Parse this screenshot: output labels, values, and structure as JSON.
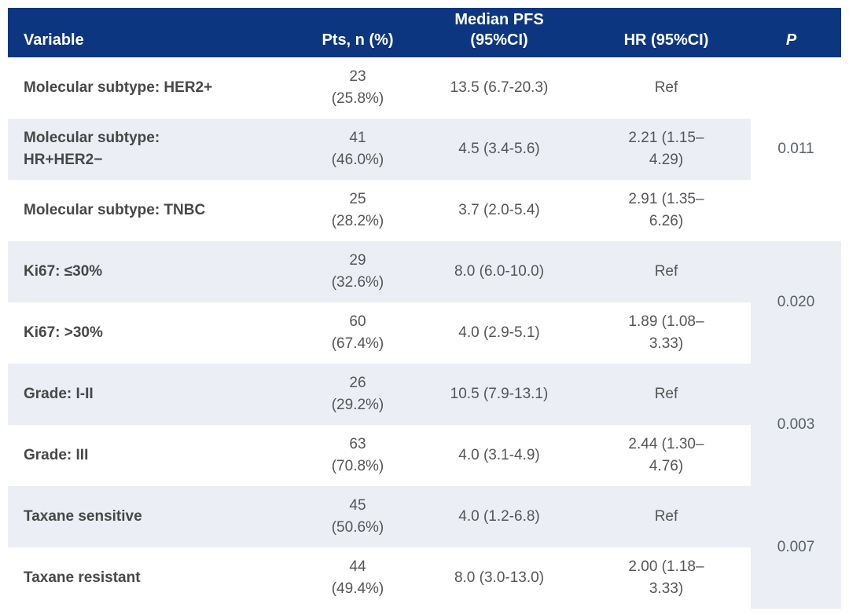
{
  "colors": {
    "header_bg": "#0d3680",
    "header_text": "#ffffff",
    "row_bg": "#ffffff",
    "row_alt_bg": "#ebeef4",
    "variable_text": "#474747",
    "data_text": "#555555"
  },
  "table": {
    "columns": {
      "variable": "Variable",
      "pts": "Pts, n (%)",
      "median_pfs": "Median PFS\n(95%CI)",
      "hr": "HR (95%CI)",
      "p": "P"
    },
    "rows": [
      {
        "variable": "Molecular subtype: HER2+",
        "pts": "23\n(25.8%)",
        "median_pfs": "13.5 (6.7-20.3)",
        "hr": "Ref"
      },
      {
        "variable": "Molecular subtype:\nHR+HER2−",
        "pts": "41\n(46.0%)",
        "median_pfs": "4.5 (3.4-5.6)",
        "hr": "2.21 (1.15–\n4.29)"
      },
      {
        "variable": "Molecular subtype: TNBC",
        "pts": "25\n(28.2%)",
        "median_pfs": "3.7 (2.0-5.4)",
        "hr": "2.91 (1.35–\n6.26)"
      },
      {
        "variable": "Ki67: ≤30%",
        "pts": "29\n(32.6%)",
        "median_pfs": "8.0 (6.0-10.0)",
        "hr": "Ref"
      },
      {
        "variable": "Ki67: >30%",
        "pts": "60\n(67.4%)",
        "median_pfs": "4.0 (2.9-5.1)",
        "hr": "1.89 (1.08–\n3.33)"
      },
      {
        "variable": "Grade: I-II",
        "pts": "26\n(29.2%)",
        "median_pfs": "10.5 (7.9-13.1)",
        "hr": "Ref"
      },
      {
        "variable": "Grade: III",
        "pts": "63\n(70.8%)",
        "median_pfs": "4.0 (3.1-4.9)",
        "hr": "2.44 (1.30–\n4.76)"
      },
      {
        "variable": "Taxane sensitive",
        "pts": "45\n(50.6%)",
        "median_pfs": "4.0 (1.2-6.8)",
        "hr": "Ref"
      },
      {
        "variable": "Taxane resistant",
        "pts": "44\n(49.4%)",
        "median_pfs": "8.0 (3.0-13.0)",
        "hr": "2.00 (1.18–\n3.33)"
      }
    ],
    "p_values": {
      "molecular_subtype": "0.011",
      "ki67": "0.020",
      "grade": "0.003",
      "taxane": "0.007"
    }
  },
  "chart_data": {
    "type": "table",
    "title": "",
    "columns": [
      "Variable",
      "Pts, n (%)",
      "Median PFS (95%CI)",
      "HR (95%CI)",
      "P"
    ],
    "rows": [
      [
        "Molecular subtype: HER2+",
        "23 (25.8%)",
        "13.5 (6.7-20.3)",
        "Ref",
        "0.011"
      ],
      [
        "Molecular subtype: HR+HER2−",
        "41 (46.0%)",
        "4.5 (3.4-5.6)",
        "2.21 (1.15–4.29)",
        "0.011"
      ],
      [
        "Molecular subtype: TNBC",
        "25 (28.2%)",
        "3.7 (2.0-5.4)",
        "2.91 (1.35–6.26)",
        "0.011"
      ],
      [
        "Ki67: ≤30%",
        "29 (32.6%)",
        "8.0 (6.0-10.0)",
        "Ref",
        "0.020"
      ],
      [
        "Ki67: >30%",
        "60 (67.4%)",
        "4.0 (2.9-5.1)",
        "1.89 (1.08–3.33)",
        "0.020"
      ],
      [
        "Grade: I-II",
        "26 (29.2%)",
        "10.5 (7.9-13.1)",
        "Ref",
        "0.003"
      ],
      [
        "Grade: III",
        "63 (70.8%)",
        "4.0 (3.1-4.9)",
        "2.44 (1.30–4.76)",
        "0.003"
      ],
      [
        "Taxane sensitive",
        "45 (50.6%)",
        "4.0 (1.2-6.8)",
        "Ref",
        "0.007"
      ],
      [
        "Taxane resistant",
        "44 (49.4%)",
        "8.0 (3.0-13.0)",
        "2.00 (1.18–3.33)",
        "0.007"
      ]
    ]
  }
}
